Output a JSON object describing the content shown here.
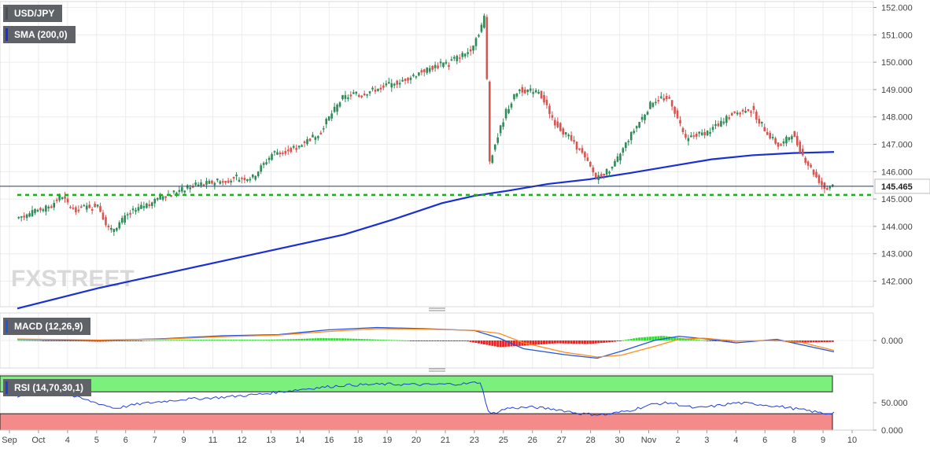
{
  "labels": {
    "symbol": "USD/JPY",
    "sma": "SMA (200,0)",
    "macd": "MACD (12,26,9)",
    "rsi": "RSI (14,70,30,1)"
  },
  "watermark": "FXSTREET",
  "colors": {
    "up": "#2e8b57",
    "down": "#d9534f",
    "sma": "#1a2fd6",
    "support": "#22aa22",
    "macd_line": "#2255dd",
    "signal_line": "#ff8c1a",
    "hist_pos": "#33dd33",
    "hist_neg": "#ee2222",
    "rsi_line": "#1f3fdc",
    "overbought_zone": "#7cf07c",
    "oversold_zone": "#f58a8a"
  },
  "chart_data": [
    {
      "type": "candlestick",
      "title": "USD/JPY",
      "ylim": [
        141.1,
        152.2
      ],
      "y_ticks": [
        "152.000",
        "151.000",
        "150.000",
        "149.000",
        "148.000",
        "147.000",
        "146.000",
        "145.000",
        "144.000",
        "143.000",
        "142.000"
      ],
      "x_ticks": [
        "Sep",
        "Oct",
        "4",
        "5",
        "6",
        "7",
        "9",
        "11",
        "12",
        "13",
        "14",
        "16",
        "18",
        "19",
        "20",
        "21",
        "23",
        "25",
        "26",
        "27",
        "28",
        "30",
        "Nov",
        "2",
        "3",
        "4",
        "6",
        "8",
        "9",
        "10"
      ],
      "current_price": "145.465",
      "support_level": 145.15,
      "sma_name": "SMA (200,0)",
      "sma": [
        [
          0,
          141.0
        ],
        [
          0.1,
          141.75
        ],
        [
          0.2,
          142.4
        ],
        [
          0.3,
          143.05
        ],
        [
          0.4,
          143.7
        ],
        [
          0.46,
          144.25
        ],
        [
          0.52,
          144.85
        ],
        [
          0.56,
          145.12
        ],
        [
          0.6,
          145.3
        ],
        [
          0.65,
          145.55
        ],
        [
          0.7,
          145.72
        ],
        [
          0.75,
          145.95
        ],
        [
          0.8,
          146.2
        ],
        [
          0.85,
          146.45
        ],
        [
          0.9,
          146.6
        ],
        [
          0.95,
          146.68
        ],
        [
          1.0,
          146.72
        ]
      ],
      "price_path": [
        [
          0,
          144.3
        ],
        [
          0.04,
          144.7
        ],
        [
          0.055,
          145.1
        ],
        [
          0.07,
          144.6
        ],
        [
          0.1,
          144.8
        ],
        [
          0.115,
          143.8
        ],
        [
          0.14,
          144.5
        ],
        [
          0.18,
          145.1
        ],
        [
          0.22,
          145.5
        ],
        [
          0.26,
          145.7
        ],
        [
          0.29,
          145.8
        ],
        [
          0.315,
          146.7
        ],
        [
          0.34,
          146.8
        ],
        [
          0.37,
          147.4
        ],
        [
          0.4,
          148.7
        ],
        [
          0.43,
          148.9
        ],
        [
          0.47,
          149.3
        ],
        [
          0.5,
          149.7
        ],
        [
          0.53,
          150.0
        ],
        [
          0.555,
          150.4
        ],
        [
          0.567,
          151.1
        ],
        [
          0.574,
          151.7
        ],
        [
          0.58,
          146.4
        ],
        [
          0.6,
          148.2
        ],
        [
          0.615,
          149.0
        ],
        [
          0.64,
          148.9
        ],
        [
          0.66,
          147.8
        ],
        [
          0.69,
          146.8
        ],
        [
          0.71,
          145.8
        ],
        [
          0.73,
          146.1
        ],
        [
          0.75,
          147.2
        ],
        [
          0.78,
          148.6
        ],
        [
          0.8,
          148.7
        ],
        [
          0.82,
          147.2
        ],
        [
          0.85,
          147.5
        ],
        [
          0.88,
          148.2
        ],
        [
          0.9,
          148.3
        ],
        [
          0.92,
          147.4
        ],
        [
          0.935,
          146.9
        ],
        [
          0.95,
          147.4
        ],
        [
          0.965,
          146.5
        ],
        [
          0.98,
          145.8
        ],
        [
          0.99,
          145.4
        ],
        [
          1.0,
          145.46
        ]
      ]
    },
    {
      "type": "line",
      "title": "MACD (12,26,9)",
      "y_ticks": [
        "0.000"
      ],
      "ylim": [
        -1.0,
        1.0
      ],
      "series": [
        {
          "name": "MACD",
          "values": [
            [
              0,
              0.05
            ],
            [
              0.1,
              0.0
            ],
            [
              0.18,
              0.08
            ],
            [
              0.25,
              0.2
            ],
            [
              0.32,
              0.25
            ],
            [
              0.38,
              0.45
            ],
            [
              0.44,
              0.55
            ],
            [
              0.5,
              0.5
            ],
            [
              0.56,
              0.42
            ],
            [
              0.59,
              0.1
            ],
            [
              0.62,
              -0.35
            ],
            [
              0.67,
              -0.6
            ],
            [
              0.71,
              -0.75
            ],
            [
              0.74,
              -0.45
            ],
            [
              0.78,
              0.0
            ],
            [
              0.81,
              0.18
            ],
            [
              0.84,
              0.08
            ],
            [
              0.88,
              -0.1
            ],
            [
              0.93,
              0.05
            ],
            [
              0.96,
              -0.18
            ],
            [
              1.0,
              -0.48
            ]
          ]
        },
        {
          "name": "Signal",
          "values": [
            [
              0,
              0.06
            ],
            [
              0.1,
              0.02
            ],
            [
              0.18,
              0.06
            ],
            [
              0.25,
              0.16
            ],
            [
              0.32,
              0.23
            ],
            [
              0.38,
              0.38
            ],
            [
              0.44,
              0.5
            ],
            [
              0.5,
              0.48
            ],
            [
              0.56,
              0.43
            ],
            [
              0.59,
              0.3
            ],
            [
              0.62,
              -0.1
            ],
            [
              0.67,
              -0.5
            ],
            [
              0.71,
              -0.7
            ],
            [
              0.74,
              -0.62
            ],
            [
              0.78,
              -0.25
            ],
            [
              0.81,
              0.05
            ],
            [
              0.84,
              0.1
            ],
            [
              0.88,
              -0.02
            ],
            [
              0.93,
              0.0
            ],
            [
              0.96,
              -0.08
            ],
            [
              1.0,
              -0.42
            ]
          ]
        }
      ],
      "histogram": [
        [
          0,
          0.02
        ],
        [
          0.06,
          -0.02
        ],
        [
          0.1,
          -0.05
        ],
        [
          0.14,
          -0.01
        ],
        [
          0.18,
          0.02
        ],
        [
          0.24,
          0.04
        ],
        [
          0.3,
          0.03
        ],
        [
          0.34,
          0.06
        ],
        [
          0.37,
          0.1
        ],
        [
          0.4,
          0.09
        ],
        [
          0.45,
          0.03
        ],
        [
          0.5,
          -0.02
        ],
        [
          0.55,
          -0.03
        ],
        [
          0.59,
          -0.28
        ],
        [
          0.62,
          -0.22
        ],
        [
          0.66,
          -0.12
        ],
        [
          0.7,
          -0.15
        ],
        [
          0.73,
          -0.06
        ],
        [
          0.76,
          0.12
        ],
        [
          0.79,
          0.2
        ],
        [
          0.82,
          0.08
        ],
        [
          0.85,
          -0.02
        ],
        [
          0.88,
          -0.05
        ],
        [
          0.92,
          0.03
        ],
        [
          0.95,
          -0.1
        ],
        [
          1.0,
          -0.06
        ]
      ]
    },
    {
      "type": "line",
      "title": "RSI (14,70,30,1)",
      "y_ticks": [
        "50.000",
        "0.000"
      ],
      "ylim": [
        0,
        100
      ],
      "overbought": 70,
      "oversold": 30,
      "series": [
        {
          "name": "RSI",
          "values": [
            [
              0,
              62
            ],
            [
              0.05,
              70
            ],
            [
              0.08,
              57
            ],
            [
              0.12,
              40
            ],
            [
              0.15,
              48
            ],
            [
              0.2,
              56
            ],
            [
              0.25,
              60
            ],
            [
              0.3,
              66
            ],
            [
              0.35,
              75
            ],
            [
              0.4,
              82
            ],
            [
              0.45,
              84
            ],
            [
              0.5,
              83
            ],
            [
              0.55,
              85
            ],
            [
              0.567,
              88
            ],
            [
              0.578,
              28
            ],
            [
              0.6,
              40
            ],
            [
              0.63,
              42
            ],
            [
              0.66,
              38
            ],
            [
              0.69,
              30
            ],
            [
              0.72,
              28
            ],
            [
              0.75,
              36
            ],
            [
              0.78,
              48
            ],
            [
              0.8,
              50
            ],
            [
              0.83,
              40
            ],
            [
              0.86,
              45
            ],
            [
              0.88,
              50
            ],
            [
              0.91,
              47
            ],
            [
              0.94,
              42
            ],
            [
              0.97,
              35
            ],
            [
              0.99,
              30
            ],
            [
              1.0,
              32
            ]
          ]
        }
      ]
    }
  ]
}
